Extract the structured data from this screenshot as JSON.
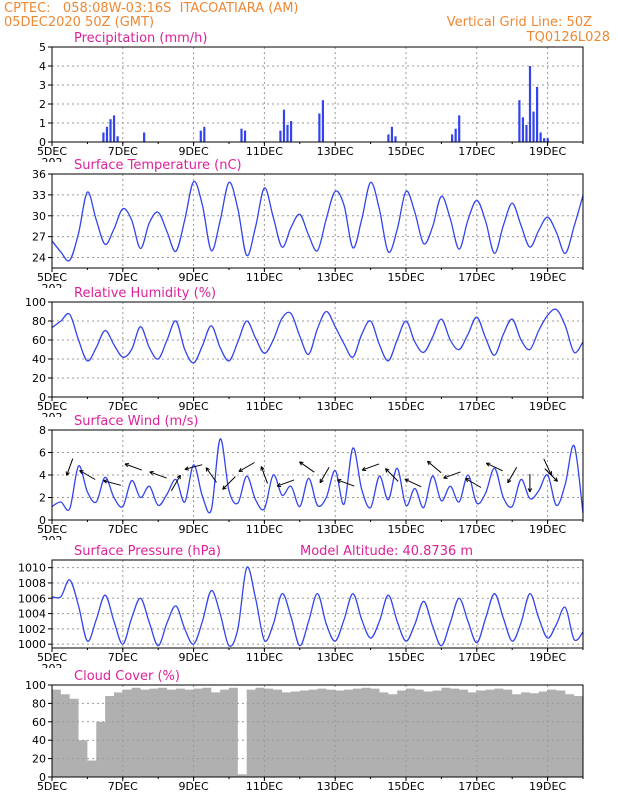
{
  "header": {
    "line1_left": "CPTEC:   058:08W-03:16S  ITACOATIARA (AM)",
    "line2_left": "05DEC2020 50Z (GMT)",
    "line1_right": "Vertical Grid Line: 50Z",
    "line2_right": "TQ0126L028"
  },
  "colors": {
    "header": "#ee8833",
    "title": "#dd2299",
    "series": "#3344ee",
    "cloud": "#b0b0b0",
    "grid": "#999999",
    "wind_arrow": "#000000"
  },
  "x_axis": {
    "ticks": [
      "5DEC",
      "7DEC",
      "9DEC",
      "11DEC",
      "13DEC",
      "15DEC",
      "17DEC",
      "19DEC"
    ],
    "tick_positions_days": [
      0,
      2,
      4,
      6,
      8,
      10,
      12,
      14
    ],
    "range_days": [
      0,
      15
    ],
    "cutoff_label": "202"
  },
  "chart_data": [
    {
      "id": "precip",
      "type": "bar",
      "title": "Precipitation (mm/h)",
      "ylim": [
        0,
        5
      ],
      "yticks": [
        0,
        1,
        2,
        3,
        4,
        5
      ],
      "grid": true,
      "x_days": [
        1.45,
        1.55,
        1.65,
        1.75,
        1.85,
        2.6,
        4.2,
        4.3,
        5.35,
        5.45,
        6.45,
        6.55,
        6.65,
        6.75,
        7.55,
        7.65,
        9.5,
        9.6,
        9.7,
        11.3,
        11.4,
        11.5,
        13.2,
        13.3,
        13.4,
        13.5,
        13.6,
        13.7,
        13.8,
        13.9,
        14.0
      ],
      "values": [
        0.5,
        0.8,
        1.2,
        1.4,
        0.3,
        0.5,
        0.6,
        0.8,
        0.7,
        0.6,
        0.6,
        1.7,
        0.9,
        1.1,
        1.5,
        2.2,
        0.4,
        0.8,
        0.3,
        0.4,
        0.7,
        1.4,
        2.2,
        1.3,
        0.9,
        4.0,
        1.6,
        2.9,
        0.5,
        0.2,
        0.2
      ]
    },
    {
      "id": "temp",
      "type": "line",
      "title": "Surface Temperature (nC)",
      "ylim": [
        22.5,
        36
      ],
      "yticks": [
        24,
        27,
        30,
        33,
        36
      ],
      "grid": true,
      "x_days": [
        0.0,
        0.25,
        0.5,
        0.75,
        1.0,
        1.25,
        1.5,
        1.75,
        2.0,
        2.25,
        2.5,
        2.75,
        3.0,
        3.25,
        3.5,
        3.75,
        4.0,
        4.25,
        4.5,
        4.75,
        5.0,
        5.25,
        5.5,
        5.75,
        6.0,
        6.25,
        6.5,
        6.75,
        7.0,
        7.25,
        7.5,
        7.75,
        8.0,
        8.25,
        8.5,
        8.75,
        9.0,
        9.25,
        9.5,
        9.75,
        10.0,
        10.25,
        10.5,
        10.75,
        11.0,
        11.25,
        11.5,
        11.75,
        12.0,
        12.25,
        12.5,
        12.75,
        13.0,
        13.25,
        13.5,
        13.75,
        14.0,
        14.25,
        14.5,
        14.75,
        15.0
      ],
      "values": [
        26.4,
        24.8,
        23.6,
        27.5,
        33.4,
        29.4,
        25.9,
        28.1,
        31.0,
        29.4,
        25.3,
        29.0,
        30.5,
        27.7,
        24.9,
        29.4,
        34.9,
        31.5,
        25.0,
        29.3,
        34.8,
        31.0,
        24.3,
        28.4,
        34.0,
        29.8,
        25.5,
        28.3,
        30.2,
        27.2,
        25.0,
        29.6,
        33.5,
        31.5,
        25.4,
        29.5,
        34.8,
        30.9,
        24.8,
        28.0,
        33.5,
        30.5,
        26.0,
        28.4,
        32.8,
        29.6,
        25.2,
        29.4,
        32.2,
        29.2,
        24.6,
        28.6,
        31.8,
        28.6,
        25.5,
        27.9,
        29.8,
        27.6,
        24.6,
        28.5,
        32.9
      ]
    },
    {
      "id": "rh",
      "type": "line",
      "title": "Relative Humidity (%)",
      "ylim": [
        0,
        100
      ],
      "yticks": [
        0,
        20,
        40,
        60,
        80,
        100
      ],
      "grid": true,
      "x_days": [
        0.0,
        0.25,
        0.5,
        0.75,
        1.0,
        1.25,
        1.5,
        1.75,
        2.0,
        2.25,
        2.5,
        2.75,
        3.0,
        3.25,
        3.5,
        3.75,
        4.0,
        4.25,
        4.5,
        4.75,
        5.0,
        5.25,
        5.5,
        5.75,
        6.0,
        6.25,
        6.5,
        6.75,
        7.0,
        7.25,
        7.5,
        7.75,
        8.0,
        8.25,
        8.5,
        8.75,
        9.0,
        9.25,
        9.5,
        9.75,
        10.0,
        10.25,
        10.5,
        10.75,
        11.0,
        11.25,
        11.5,
        11.75,
        12.0,
        12.25,
        12.5,
        12.75,
        13.0,
        13.25,
        13.5,
        13.75,
        14.0,
        14.25,
        14.5,
        14.75,
        15.0
      ],
      "values": [
        73,
        80,
        87,
        60,
        38,
        52,
        70,
        55,
        42,
        50,
        74,
        52,
        40,
        60,
        80,
        50,
        36,
        54,
        75,
        52,
        38,
        58,
        80,
        62,
        46,
        60,
        83,
        88,
        64,
        45,
        72,
        90,
        74,
        56,
        42,
        66,
        80,
        55,
        38,
        60,
        80,
        58,
        47,
        63,
        82,
        60,
        50,
        66,
        84,
        62,
        44,
        66,
        82,
        60,
        50,
        70,
        86,
        92,
        75,
        47,
        58
      ]
    },
    {
      "id": "wind",
      "type": "line",
      "title": "Surface Wind (m/s)",
      "ylim": [
        0,
        8
      ],
      "yticks": [
        0,
        2,
        4,
        6,
        8
      ],
      "grid": true,
      "x_days": [
        0.0,
        0.25,
        0.5,
        0.75,
        1.0,
        1.25,
        1.5,
        1.75,
        2.0,
        2.25,
        2.5,
        2.75,
        3.0,
        3.25,
        3.5,
        3.75,
        4.0,
        4.25,
        4.5,
        4.75,
        5.0,
        5.25,
        5.5,
        5.75,
        6.0,
        6.25,
        6.5,
        6.75,
        7.0,
        7.25,
        7.5,
        7.75,
        8.0,
        8.25,
        8.5,
        8.75,
        9.0,
        9.25,
        9.5,
        9.75,
        10.0,
        10.25,
        10.5,
        10.75,
        11.0,
        11.25,
        11.5,
        11.75,
        12.0,
        12.25,
        12.5,
        12.75,
        13.0,
        13.25,
        13.5,
        13.75,
        14.0,
        14.25,
        14.5,
        14.75,
        15.0
      ],
      "values": [
        1.2,
        1.6,
        1.0,
        4.8,
        2.5,
        1.6,
        3.8,
        2.0,
        1.2,
        3.5,
        2.0,
        3.0,
        1.3,
        2.3,
        3.6,
        1.6,
        4.9,
        2.1,
        0.9,
        7.2,
        2.6,
        1.5,
        3.9,
        1.8,
        1.0,
        4.0,
        2.2,
        3.0,
        1.2,
        3.7,
        1.3,
        2.0,
        4.4,
        1.4,
        6.4,
        2.7,
        1.1,
        3.9,
        1.8,
        4.6,
        1.3,
        2.8,
        1.1,
        3.9,
        1.7,
        3.0,
        1.6,
        4.0,
        1.5,
        2.4,
        4.6,
        2.0,
        1.2,
        3.6,
        1.9,
        2.6,
        4.0,
        1.3,
        3.2,
        6.6,
        0.6
      ],
      "arrows_x_days": [
        0.5,
        1.0,
        1.7,
        2.3,
        3.0,
        3.5,
        4.0,
        4.5,
        5.0,
        5.5,
        6.0,
        6.6,
        7.2,
        7.7,
        8.3,
        9.0,
        9.6,
        10.2,
        10.8,
        11.3,
        11.9,
        12.5,
        13.0,
        13.5,
        14.0,
        14.1
      ],
      "arrows_dir_deg": [
        250,
        150,
        165,
        160,
        160,
        60,
        195,
        125,
        225,
        210,
        110,
        200,
        145,
        240,
        160,
        200,
        135,
        155,
        140,
        200,
        150,
        155,
        240,
        270,
        295,
        315
      ]
    },
    {
      "id": "pressure",
      "type": "line",
      "title": "Surface Pressure (hPa)",
      "subtitle": "Model Altitude: 40.8736 m",
      "ylim": [
        999.5,
        1011
      ],
      "yticks": [
        1000,
        1002,
        1004,
        1006,
        1008,
        1010
      ],
      "grid": true,
      "x_days": [
        0.0,
        0.25,
        0.5,
        0.75,
        1.0,
        1.25,
        1.5,
        1.75,
        2.0,
        2.25,
        2.5,
        2.75,
        3.0,
        3.25,
        3.5,
        3.75,
        4.0,
        4.25,
        4.5,
        4.75,
        5.0,
        5.25,
        5.5,
        5.75,
        6.0,
        6.25,
        6.5,
        6.75,
        7.0,
        7.25,
        7.5,
        7.75,
        8.0,
        8.25,
        8.5,
        8.75,
        9.0,
        9.25,
        9.5,
        9.75,
        10.0,
        10.25,
        10.5,
        10.75,
        11.0,
        11.25,
        11.5,
        11.75,
        12.0,
        12.25,
        12.5,
        12.75,
        13.0,
        13.25,
        13.5,
        13.75,
        14.0,
        14.25,
        14.5,
        14.75,
        15.0
      ],
      "values": [
        1006.2,
        1006.2,
        1008.4,
        1005.0,
        1000.4,
        1003.2,
        1006.4,
        1003.0,
        1000.0,
        1003.4,
        1006.0,
        1002.8,
        999.8,
        1002.8,
        1005.0,
        1002.0,
        1000.0,
        1003.0,
        1007.0,
        1004.0,
        999.8,
        1002.0,
        1010.0,
        1006.0,
        1000.5,
        1002.6,
        1006.6,
        1003.6,
        999.8,
        1003.0,
        1006.6,
        1002.6,
        1000.4,
        1003.2,
        1006.6,
        1003.2,
        1000.8,
        1003.0,
        1006.4,
        1003.0,
        1000.4,
        1002.6,
        1005.6,
        1002.4,
        999.8,
        1002.8,
        1006.0,
        1003.0,
        1000.2,
        1003.4,
        1006.6,
        1003.4,
        1000.4,
        1002.8,
        1006.6,
        1003.4,
        1000.8,
        1002.6,
        1004.8,
        1000.6,
        1001.6
      ]
    },
    {
      "id": "cloud",
      "type": "area",
      "title": "Cloud Cover (%)",
      "ylim": [
        0,
        100
      ],
      "yticks": [
        0,
        20,
        40,
        60,
        80,
        100
      ],
      "grid": true,
      "x_days": [
        0.0,
        0.25,
        0.5,
        0.75,
        1.0,
        1.25,
        1.5,
        1.75,
        2.0,
        2.25,
        2.5,
        2.75,
        3.0,
        3.25,
        3.5,
        3.75,
        4.0,
        4.25,
        4.5,
        4.75,
        5.0,
        5.25,
        5.5,
        5.75,
        6.0,
        6.25,
        6.5,
        6.75,
        7.0,
        7.25,
        7.5,
        7.75,
        8.0,
        8.25,
        8.5,
        8.75,
        9.0,
        9.25,
        9.5,
        9.75,
        10.0,
        10.25,
        10.5,
        10.75,
        11.0,
        11.25,
        11.5,
        11.75,
        12.0,
        12.25,
        12.5,
        12.75,
        13.0,
        13.25,
        13.5,
        13.75,
        14.0,
        14.25,
        14.5,
        14.75,
        15.0
      ],
      "values": [
        95,
        90,
        85,
        40,
        18,
        60,
        88,
        92,
        95,
        97,
        95,
        96,
        97,
        95,
        96,
        95,
        96,
        97,
        92,
        95,
        97,
        3,
        95,
        97,
        96,
        95,
        92,
        93,
        94,
        95,
        96,
        95,
        94,
        95,
        96,
        97,
        96,
        92,
        90,
        94,
        96,
        95,
        93,
        94,
        97,
        96,
        95,
        92,
        94,
        95,
        96,
        95,
        90,
        92,
        91,
        93,
        95,
        94,
        90,
        88,
        92
      ]
    }
  ]
}
